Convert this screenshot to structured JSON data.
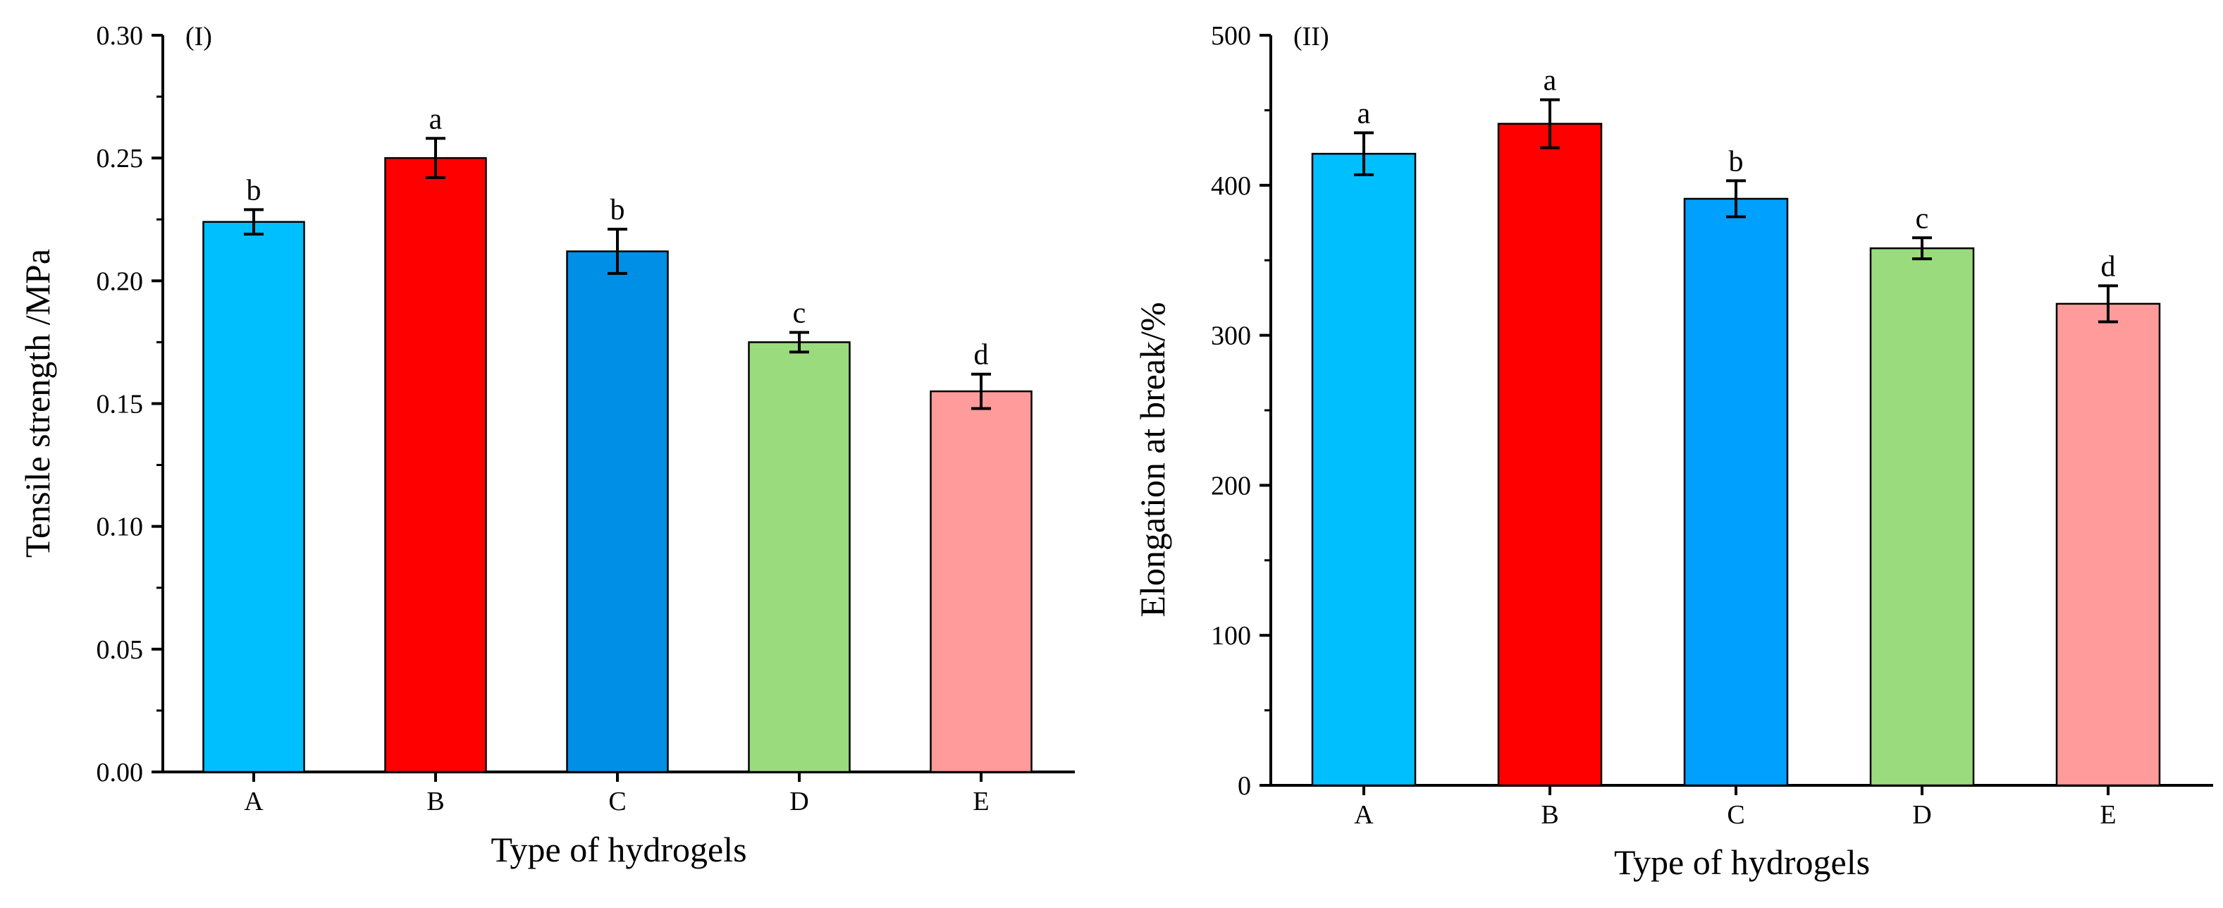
{
  "chart_data": [
    {
      "type": "bar",
      "panel_label": "(I)",
      "title": "",
      "xlabel": "Type of hydrogels",
      "ylabel": "Tensile strength /MPa",
      "categories": [
        "A",
        "B",
        "C",
        "D",
        "E"
      ],
      "values": [
        0.224,
        0.25,
        0.212,
        0.175,
        0.155
      ],
      "errors": [
        0.005,
        0.008,
        0.009,
        0.004,
        0.007
      ],
      "significance": [
        "b",
        "a",
        "b",
        "c",
        "d"
      ],
      "colors": [
        "#00BFFF",
        "#FF0000",
        "#008FE6",
        "#9ADB7E",
        "#FF9B9B"
      ],
      "ylim": [
        0,
        0.3
      ],
      "yticks": [
        0.0,
        0.05,
        0.1,
        0.15,
        0.2,
        0.25,
        0.3
      ],
      "ytick_labels": [
        "0.00",
        "0.05",
        "0.10",
        "0.15",
        "0.20",
        "0.25",
        "0.30"
      ],
      "grid": false,
      "legend": "none"
    },
    {
      "type": "bar",
      "panel_label": "(II)",
      "title": "",
      "xlabel": "Type of hydrogels",
      "ylabel": "Elongation at break/%",
      "categories": [
        "A",
        "B",
        "C",
        "D",
        "E"
      ],
      "values": [
        421,
        441,
        391,
        358,
        321
      ],
      "errors": [
        14,
        16,
        12,
        7,
        12
      ],
      "significance": [
        "a",
        "a",
        "b",
        "c",
        "d"
      ],
      "colors": [
        "#00BFFF",
        "#FF0000",
        "#00A0FF",
        "#9ADB7E",
        "#FF9B9B"
      ],
      "ylim": [
        0,
        500
      ],
      "yticks": [
        0,
        100,
        200,
        300,
        400,
        500
      ],
      "ytick_labels": [
        "0",
        "100",
        "200",
        "300",
        "400",
        "500"
      ],
      "grid": false,
      "legend": "none"
    }
  ]
}
